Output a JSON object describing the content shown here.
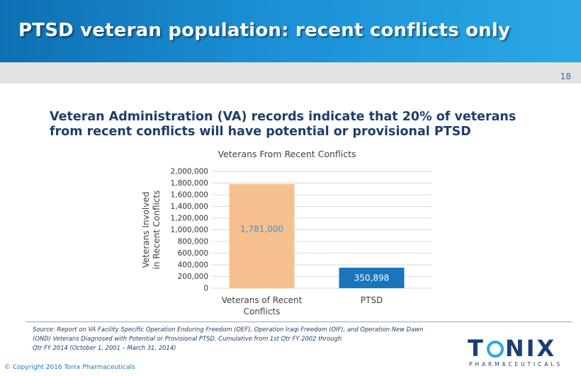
{
  "slide": {
    "title": "PTSD veteran population: recent conflicts only",
    "page_number": "18",
    "headline": "Veteran Administration  (VA) records indicate that 20% of veterans from recent conflicts  will have potential  or provisional PTSD",
    "source_lines": [
      "Source: Report on VA Facility Specific Operation Enduring Freedom (OEF), Operation Iraqi Freedom (OIF), and Operation New Dawn",
      "(OND) Veterans Diagnosed with Potential or Provisional PTSD. Cumulative from 1st Qtr FY 2002 through",
      "Qtr FY 2014 (October 1, 2001 – March 31, 2014)"
    ],
    "copyright": "© Copyright 2016 Tonix Pharmaceuticals",
    "logo": {
      "word_left": "T",
      "word_right": "NIX",
      "tagline": "PHARMACEUTICALS",
      "colors": {
        "navy": "#1b3e73",
        "cyan": "#2aa8e6"
      }
    }
  },
  "colors": {
    "header_start": "#0f6fb3",
    "header_end": "#2aa8e6",
    "bar_veterans": "#f7c08f",
    "bar_ptsd": "#1a75bb",
    "label_veterans": "#4a90c8",
    "label_ptsd": "#ffffff"
  },
  "chart_data": {
    "type": "bar",
    "title": "Veterans From Recent Conflicts",
    "ylabel_lines": [
      "Veterans Involved",
      "in Recent Conflicts"
    ],
    "categories": [
      [
        "Veterans of Recent",
        "Conflicts"
      ],
      [
        "PTSD"
      ]
    ],
    "values": [
      1781000,
      350898
    ],
    "data_labels": [
      "1,781,000",
      "350,898"
    ],
    "yticks": [
      "0",
      "200,000",
      "400,000",
      "600,000",
      "800,000",
      "1,000,000",
      "1,200,000",
      "1,400,000",
      "1,600,000",
      "1,800,000",
      "2,000,000"
    ],
    "ylim": [
      0,
      2000000
    ],
    "grid": true
  }
}
